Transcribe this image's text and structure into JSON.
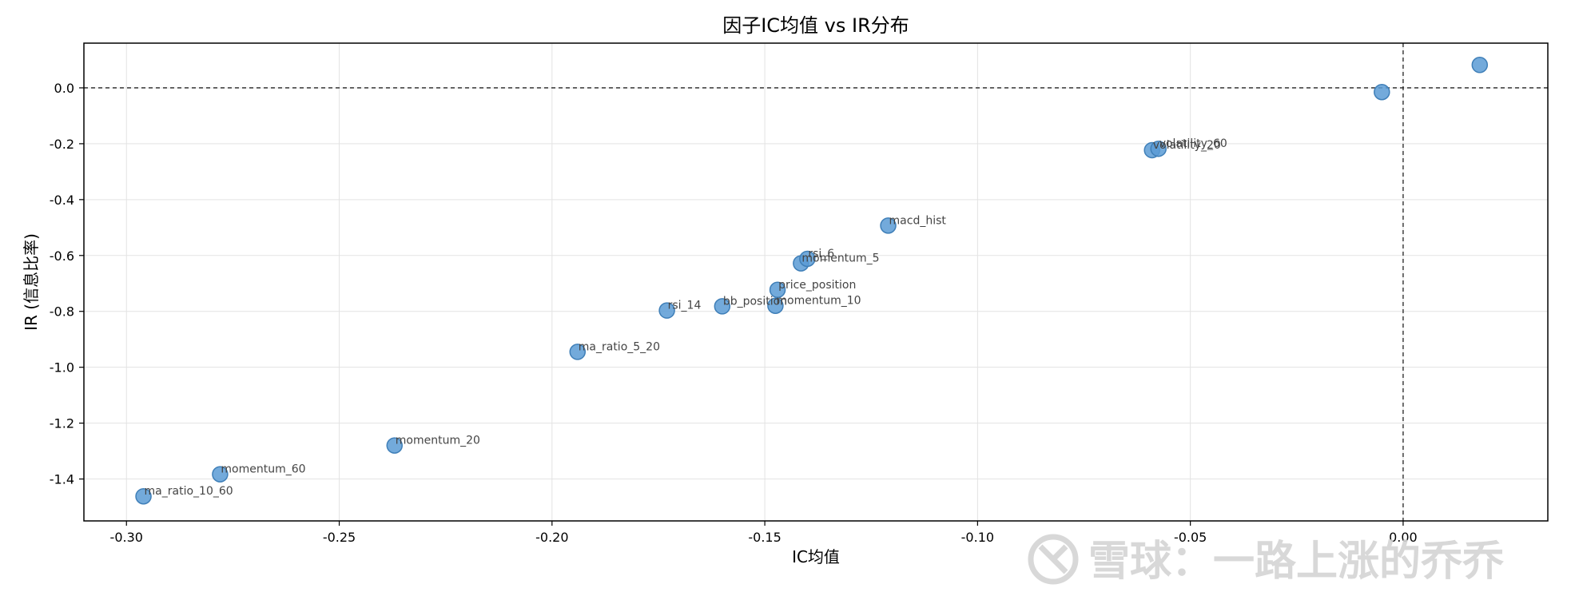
{
  "chart_data": {
    "type": "scatter",
    "title": "因子IC均值 vs IR分布",
    "xlabel": "IC均值",
    "ylabel": "IR (信息比率)",
    "xlim": [
      -0.31,
      0.034
    ],
    "ylim": [
      -1.55,
      0.16
    ],
    "xticks": [
      -0.3,
      -0.25,
      -0.2,
      -0.15,
      -0.1,
      -0.05,
      0.0
    ],
    "xtick_labels": [
      "-0.30",
      "-0.25",
      "-0.20",
      "-0.15",
      "-0.10",
      "-0.05",
      "0.00"
    ],
    "yticks": [
      0.0,
      -0.2,
      -0.4,
      -0.6,
      -0.8,
      -1.0,
      -1.2,
      -1.4
    ],
    "ytick_labels": [
      "0.0",
      "-0.2",
      "-0.4",
      "-0.6",
      "-0.8",
      "-1.0",
      "-1.2",
      "-1.4"
    ],
    "grid": true,
    "reference_lines": {
      "x": 0.0,
      "y": 0.0,
      "style": "dashed"
    },
    "point_color": "#5b9bd5",
    "point_edge_color": "#3f7fb8",
    "points": [
      {
        "label": "ma_ratio_10_60",
        "x": -0.296,
        "y": -1.462
      },
      {
        "label": "momentum_60",
        "x": -0.278,
        "y": -1.383
      },
      {
        "label": "momentum_20",
        "x": -0.237,
        "y": -1.28
      },
      {
        "label": "ma_ratio_5_20",
        "x": -0.194,
        "y": -0.945
      },
      {
        "label": "rsi_14",
        "x": -0.173,
        "y": -0.797
      },
      {
        "label": "bb_position",
        "x": -0.16,
        "y": -0.782
      },
      {
        "label": "momentum_10",
        "x": -0.1475,
        "y": -0.78
      },
      {
        "label": "price_position",
        "x": -0.147,
        "y": -0.723
      },
      {
        "label": "momentum_5",
        "x": -0.1415,
        "y": -0.628
      },
      {
        "label": "rsi_6",
        "x": -0.14,
        "y": -0.612
      },
      {
        "label": "macd_hist",
        "x": -0.121,
        "y": -0.493
      },
      {
        "label": "volatility_20",
        "x": -0.059,
        "y": -0.223
      },
      {
        "label": "volatility_60",
        "x": -0.0575,
        "y": -0.218
      },
      {
        "label": "",
        "x": -0.005,
        "y": -0.015
      },
      {
        "label": "",
        "x": 0.018,
        "y": 0.082
      }
    ]
  },
  "watermark": {
    "text": "雪球：一路上涨的乔乔",
    "icon": "snowball-logo-icon"
  }
}
